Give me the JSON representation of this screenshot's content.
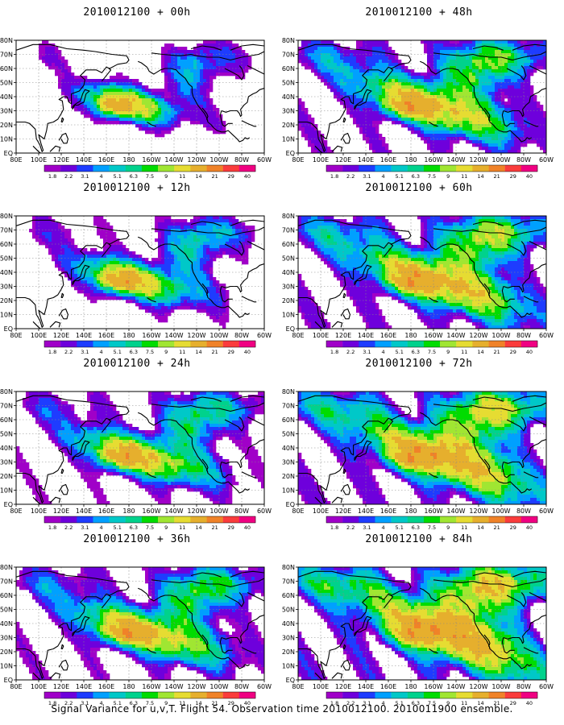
{
  "caption": "Signal Variance for u,v,T. Flight 54. Observation time 2010012100. 2010011900 ensemble.",
  "panels": [
    {
      "title": "2010012100 + 00h",
      "intensity": 0.25
    },
    {
      "title": "2010012100 + 48h",
      "intensity": 0.62
    },
    {
      "title": "2010012100 + 12h",
      "intensity": 0.36
    },
    {
      "title": "2010012100 + 60h",
      "intensity": 0.72
    },
    {
      "title": "2010012100 + 24h",
      "intensity": 0.46
    },
    {
      "title": "2010012100 + 72h",
      "intensity": 0.82
    },
    {
      "title": "2010012100 + 36h",
      "intensity": 0.55
    },
    {
      "title": "2010012100 + 84h",
      "intensity": 0.92
    }
  ],
  "latitude_labels": [
    "EQ",
    "10N",
    "20N",
    "30N",
    "40N",
    "50N",
    "60N",
    "70N",
    "80N"
  ],
  "longitude_labels": [
    "80E",
    "100E",
    "120E",
    "140E",
    "160E",
    "180",
    "160W",
    "140W",
    "120W",
    "100W",
    "80W",
    "60W"
  ],
  "colorbar": {
    "labels": [
      "1.8",
      "2.2",
      "3.1",
      "4",
      "5.1",
      "6.3",
      "7.5",
      "9",
      "11",
      "14",
      "21",
      "29",
      "40"
    ],
    "colors": [
      "#a000c8",
      "#6e00dc",
      "#1e3cff",
      "#00a0ff",
      "#00c8c8",
      "#00d28c",
      "#00dc00",
      "#a0e632",
      "#e6dc32",
      "#e6af2d",
      "#f08228",
      "#fa3c3c",
      "#f00082"
    ]
  }
}
